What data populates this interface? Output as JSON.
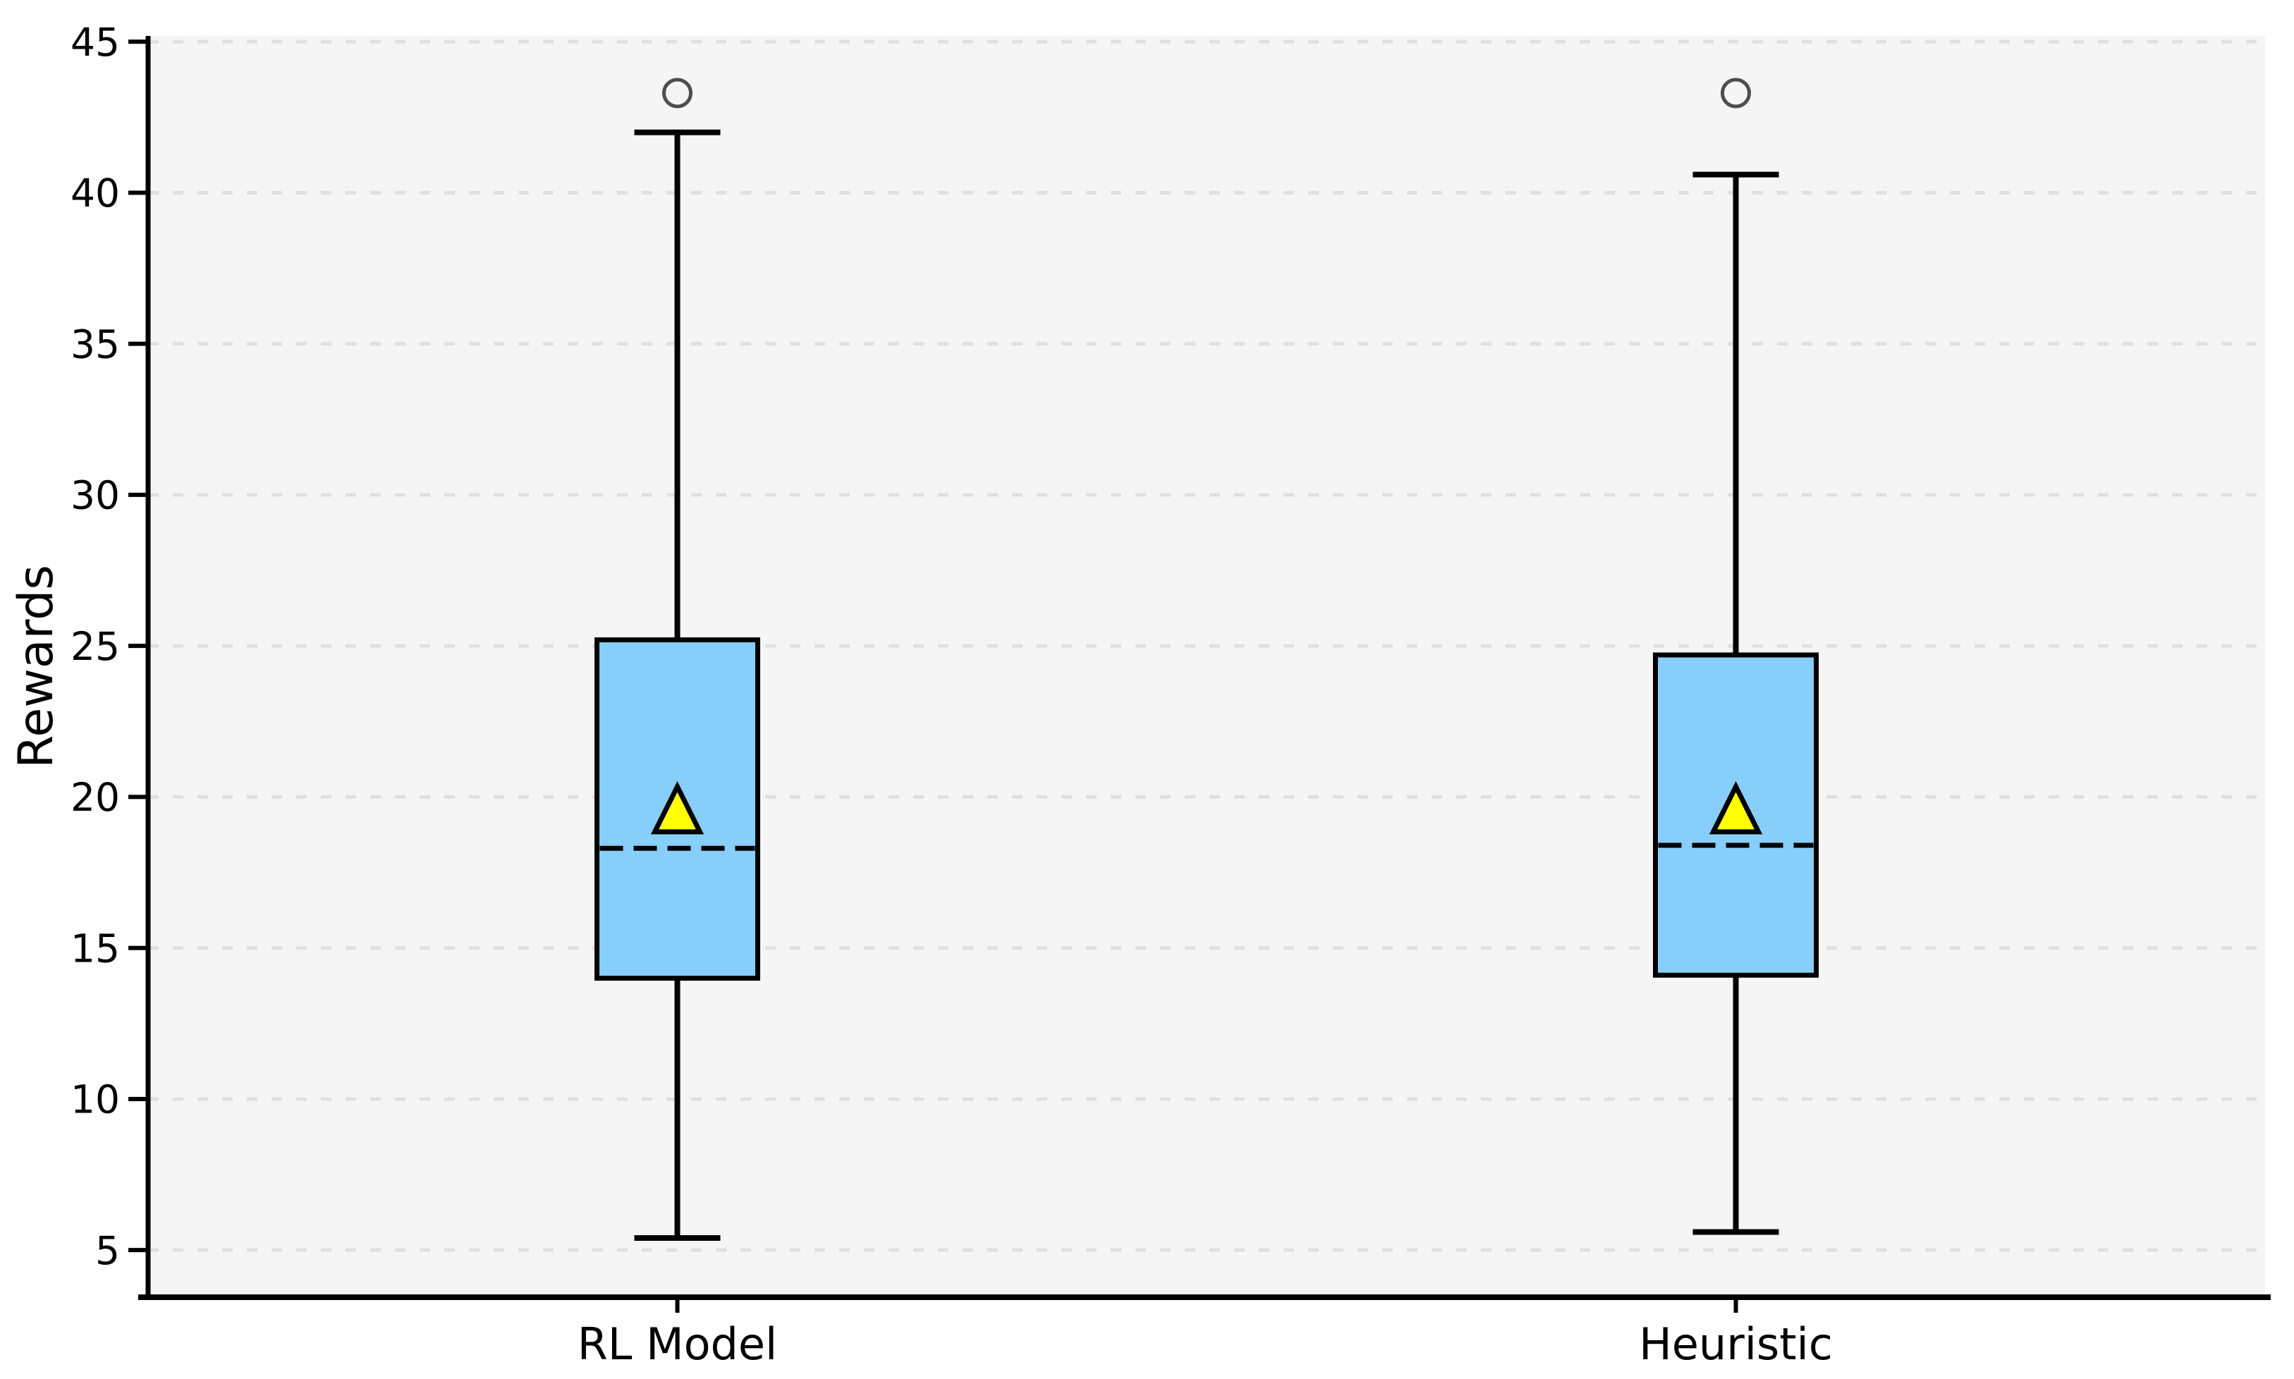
{
  "chart_data": {
    "type": "boxplot",
    "title": "",
    "xlabel": "",
    "ylabel": "Rewards",
    "categories": [
      "RL Model",
      "Heuristic"
    ],
    "y_ticks": [
      5,
      10,
      15,
      20,
      25,
      30,
      35,
      40,
      45
    ],
    "ylim": [
      3.44,
      45.19
    ],
    "grid": "horizontal-dashed",
    "legend": "none",
    "series": [
      {
        "name": "RL Model",
        "whisker_low": 5.4,
        "q1": 14.0,
        "median": 18.3,
        "q3": 25.2,
        "whisker_high": 42.0,
        "mean": 19.5,
        "outliers": [
          43.3
        ]
      },
      {
        "name": "Heuristic",
        "whisker_low": 5.6,
        "q1": 14.1,
        "median": 18.4,
        "q3": 24.7,
        "whisker_high": 40.6,
        "mean": 19.5,
        "outliers": [
          43.3
        ]
      }
    ],
    "colors": {
      "box_fill": "#87CEFA",
      "box_edge": "#000000",
      "median": "#000000",
      "mean_fill": "#FFFF00",
      "mean_edge": "#000000",
      "whisker": "#000000",
      "outlier_edge": "#4d4d4d",
      "plot_bg": "#f5f5f5",
      "grid": "#e0e0e0",
      "axis": "#000000",
      "page_bg": "#ffffff"
    }
  }
}
